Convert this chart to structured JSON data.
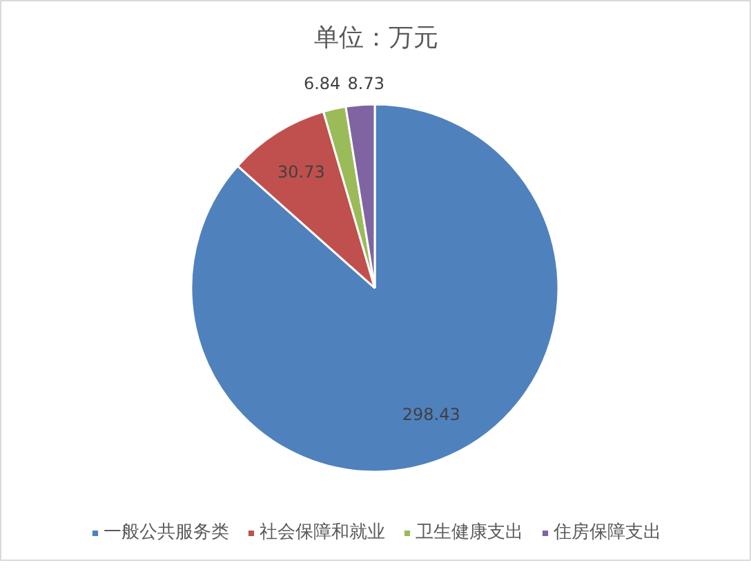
{
  "chart_data": {
    "type": "pie",
    "title": "单位：万元",
    "categories": [
      "一般公共服务类",
      "社会保障和就业",
      "卫生健康支出",
      "住房保障支出"
    ],
    "values": [
      298.43,
      30.73,
      6.84,
      8.73
    ],
    "colors": [
      "#4f81bd",
      "#c0504d",
      "#9bbb59",
      "#8064a2"
    ],
    "data_labels": true,
    "legend": "bottom"
  }
}
